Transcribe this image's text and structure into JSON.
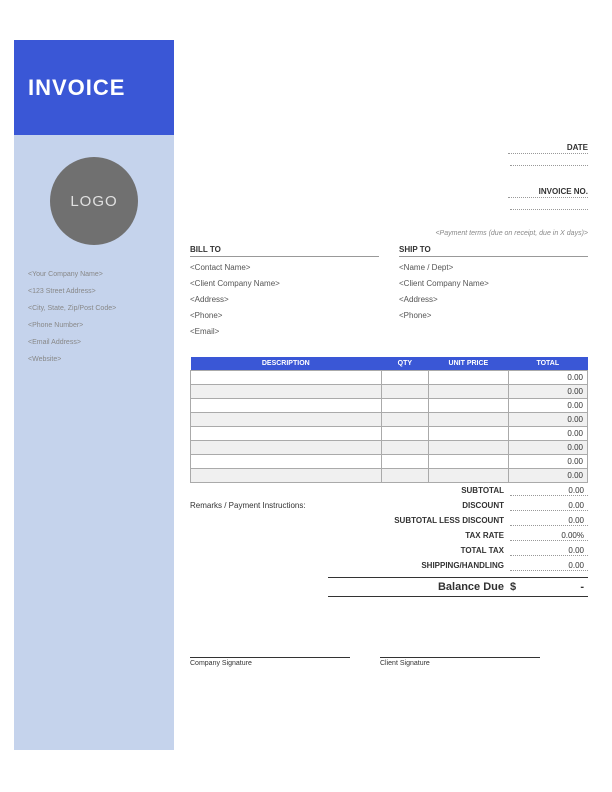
{
  "header": {
    "title": "INVOICE",
    "logo_text": "LOGO"
  },
  "company": {
    "name": "<Your Company Name>",
    "address": "<123 Street Address>",
    "city": "<City, State, Zip/Post Code>",
    "phone": "<Phone Number>",
    "email": "<Email Address>",
    "website": "<Website>"
  },
  "meta": {
    "date_label": "DATE",
    "invoice_no_label": "INVOICE NO.",
    "payment_terms": "<Payment terms (due on receipt, due in X days)>"
  },
  "bill_to": {
    "header": "BILL TO",
    "contact": "<Contact Name>",
    "company": "<Client Company Name>",
    "address": "<Address>",
    "phone": "<Phone>",
    "email": "<Email>"
  },
  "ship_to": {
    "header": "SHIP TO",
    "name": "<Name / Dept>",
    "company": "<Client Company Name>",
    "address": "<Address>",
    "phone": "<Phone>"
  },
  "table": {
    "columns": {
      "description": "DESCRIPTION",
      "qty": "QTY",
      "unit_price": "UNIT PRICE",
      "total": "TOTAL"
    },
    "rows": [
      {
        "desc": "",
        "qty": "",
        "price": "",
        "total": "0.00"
      },
      {
        "desc": "",
        "qty": "",
        "price": "",
        "total": "0.00"
      },
      {
        "desc": "",
        "qty": "",
        "price": "",
        "total": "0.00"
      },
      {
        "desc": "",
        "qty": "",
        "price": "",
        "total": "0.00"
      },
      {
        "desc": "",
        "qty": "",
        "price": "",
        "total": "0.00"
      },
      {
        "desc": "",
        "qty": "",
        "price": "",
        "total": "0.00"
      },
      {
        "desc": "",
        "qty": "",
        "price": "",
        "total": "0.00"
      },
      {
        "desc": "",
        "qty": "",
        "price": "",
        "total": "0.00"
      }
    ]
  },
  "summary": {
    "remarks_label": "Remarks / Payment Instructions:",
    "subtotal_label": "SUBTOTAL",
    "subtotal": "0.00",
    "discount_label": "DISCOUNT",
    "discount": "0.00",
    "subtotal_less_label": "SUBTOTAL LESS DISCOUNT",
    "subtotal_less": "0.00",
    "tax_rate_label": "TAX RATE",
    "tax_rate": "0.00%",
    "total_tax_label": "TOTAL TAX",
    "total_tax": "0.00",
    "shipping_label": "SHIPPING/HANDLING",
    "shipping": "0.00",
    "balance_label": "Balance Due",
    "balance_currency": "$",
    "balance_value": "-"
  },
  "signatures": {
    "company": "Company Signature",
    "client": "Client Signature"
  },
  "colors": {
    "accent": "#3a57d6",
    "sidebar_bg": "#c5d3ec",
    "logo_bg": "#707070"
  }
}
